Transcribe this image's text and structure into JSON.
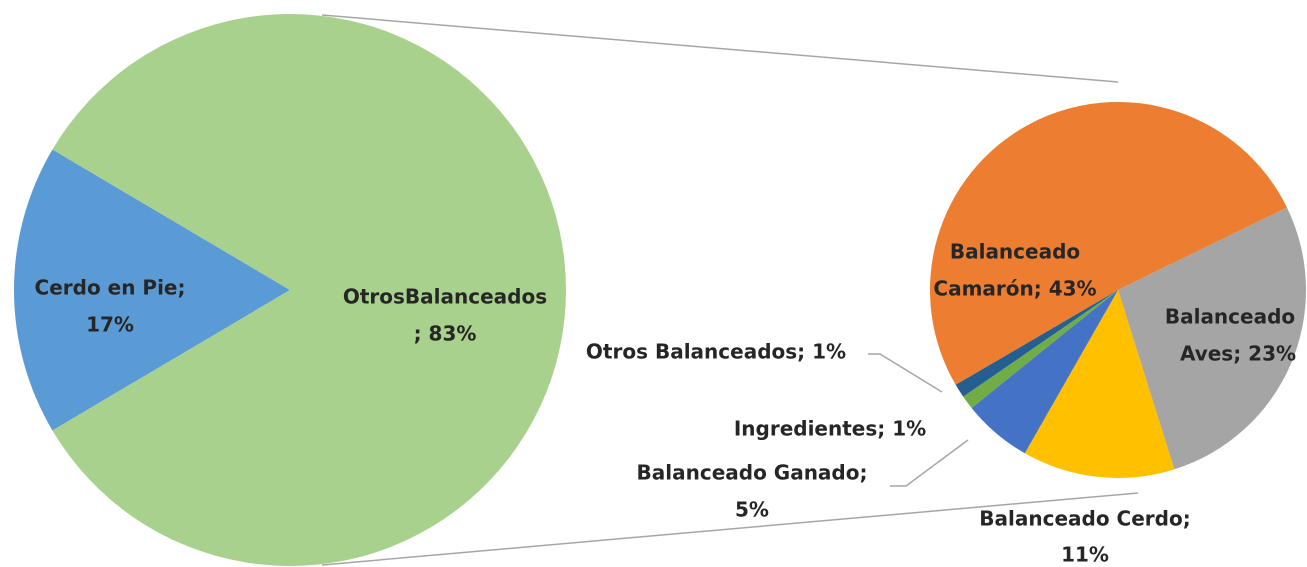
{
  "chart_data": [
    {
      "type": "pie",
      "categories": [
        "Cerdo en Pie",
        "OtrosBalanceados"
      ],
      "values": [
        17,
        83
      ],
      "value_labels": [
        [
          "Cerdo en Pie;",
          "17%"
        ],
        [
          "OtrosBalanceados",
          "; 83%"
        ]
      ],
      "colors": [
        "#5B9BD5",
        "#A9D18E"
      ]
    },
    {
      "type": "pie",
      "categories": [
        "Balanceado Camarón",
        "Balanceado Aves",
        "Balanceado Cerdo",
        "Balanceado Ganado",
        "Ingredientes",
        "Otros Balanceados"
      ],
      "values": [
        43,
        23,
        11,
        5,
        1,
        1
      ],
      "value_labels": [
        [
          "Balanceado",
          "Camarón; 43%"
        ],
        [
          "Balanceado",
          "Aves; 23%"
        ],
        [
          "Balanceado Cerdo;",
          "11%"
        ],
        [
          "Balanceado Ganado;",
          "5%"
        ],
        [
          "Ingredientes; 1%"
        ],
        [
          "Otros Balanceados; 1%"
        ]
      ],
      "colors": [
        "#ED7D31",
        "#A5A5A5",
        "#FFC000",
        "#4472C4",
        "#70AD47",
        "#255E91"
      ]
    }
  ]
}
